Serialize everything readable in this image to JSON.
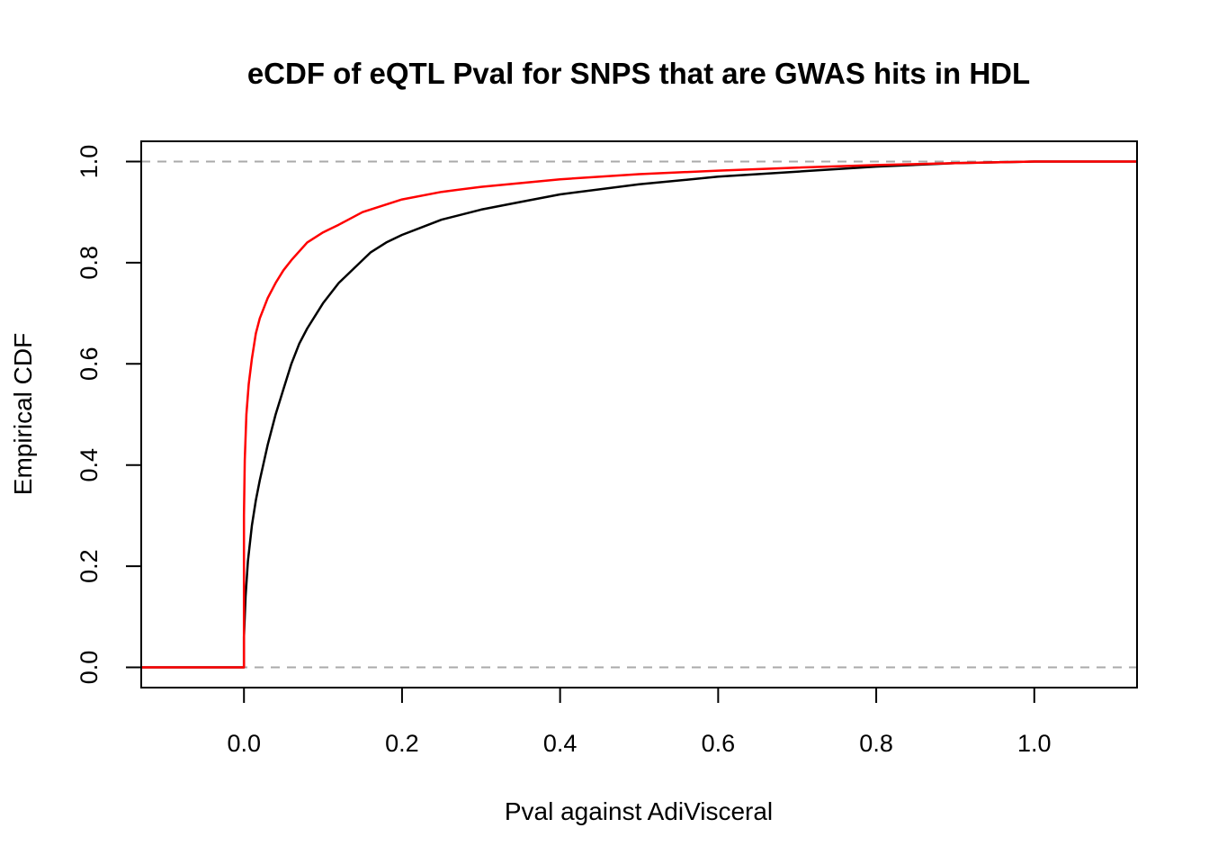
{
  "chart_data": {
    "type": "line",
    "title": "eCDF of eQTL Pval for SNPS that are GWAS hits in HDL",
    "xlabel": "Pval against AdiVisceral",
    "ylabel": "Empirical CDF",
    "xlim": [
      -0.13,
      1.13
    ],
    "ylim": [
      -0.04,
      1.04
    ],
    "x_ticks": [
      0.0,
      0.2,
      0.4,
      0.6,
      0.8,
      1.0
    ],
    "x_tick_labels": [
      "0.0",
      "0.2",
      "0.4",
      "0.6",
      "0.8",
      "1.0"
    ],
    "y_ticks": [
      0.0,
      0.2,
      0.4,
      0.6,
      0.8,
      1.0
    ],
    "y_tick_labels": [
      "0.0",
      "0.2",
      "0.4",
      "0.6",
      "0.8",
      "1.0"
    ],
    "reference_lines": [
      {
        "y": 0.0,
        "style": "dashed",
        "color": "#aaaaaa"
      },
      {
        "y": 1.0,
        "style": "dashed",
        "color": "#aaaaaa"
      }
    ],
    "grid": false,
    "legend": "none",
    "series": [
      {
        "color": "#000000",
        "x": [
          -0.13,
          0.0,
          0.0,
          0.002,
          0.005,
          0.01,
          0.015,
          0.02,
          0.03,
          0.04,
          0.05,
          0.06,
          0.07,
          0.08,
          0.1,
          0.12,
          0.14,
          0.16,
          0.18,
          0.2,
          0.25,
          0.3,
          0.35,
          0.4,
          0.5,
          0.6,
          0.7,
          0.8,
          0.9,
          1.0,
          1.13
        ],
        "y": [
          0.0,
          0.0,
          0.06,
          0.14,
          0.21,
          0.28,
          0.33,
          0.37,
          0.44,
          0.5,
          0.55,
          0.6,
          0.64,
          0.67,
          0.72,
          0.76,
          0.79,
          0.82,
          0.84,
          0.855,
          0.885,
          0.905,
          0.92,
          0.935,
          0.955,
          0.97,
          0.98,
          0.99,
          0.997,
          1.0,
          1.0
        ]
      },
      {
        "color": "#ff0000",
        "x": [
          -0.13,
          0.0,
          0.0,
          0.001,
          0.003,
          0.006,
          0.01,
          0.015,
          0.02,
          0.03,
          0.04,
          0.05,
          0.06,
          0.08,
          0.1,
          0.12,
          0.15,
          0.2,
          0.25,
          0.3,
          0.4,
          0.5,
          0.6,
          0.7,
          0.8,
          0.9,
          1.0,
          1.13
        ],
        "y": [
          0.0,
          0.0,
          0.3,
          0.41,
          0.5,
          0.56,
          0.61,
          0.66,
          0.69,
          0.73,
          0.76,
          0.785,
          0.805,
          0.84,
          0.86,
          0.875,
          0.9,
          0.925,
          0.94,
          0.95,
          0.965,
          0.975,
          0.982,
          0.988,
          0.993,
          0.997,
          1.0,
          1.0
        ]
      }
    ]
  }
}
